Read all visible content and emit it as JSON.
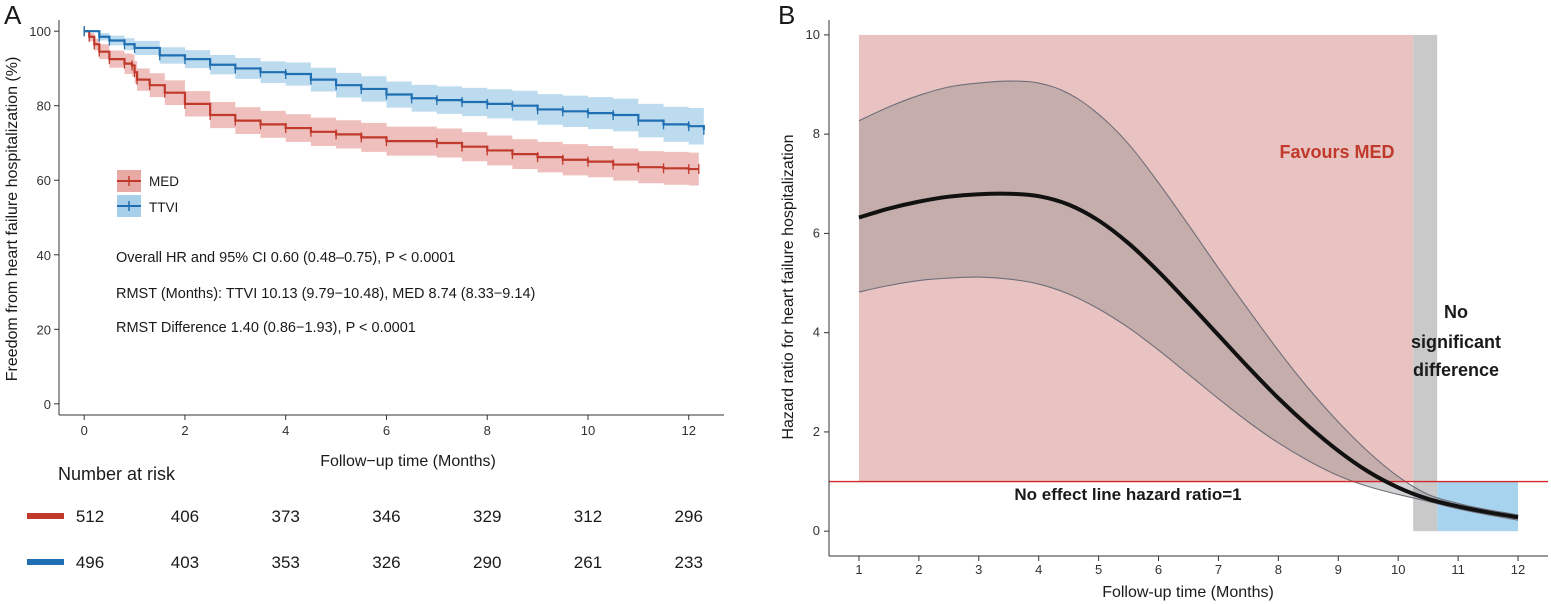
{
  "chart_data": [
    {
      "panel": "A",
      "type": "line",
      "subtype": "kaplan-meier",
      "xlabel": "Follow−up time (Months)",
      "ylabel": "Freedom from heart failure hospitalization (%)",
      "xlim": [
        -0.5,
        12.7
      ],
      "ylim": [
        -3,
        103
      ],
      "xticks": [
        0,
        2,
        4,
        6,
        8,
        10,
        12
      ],
      "yticks": [
        0,
        20,
        40,
        60,
        80,
        100
      ],
      "legend_position": "left-middle",
      "series": [
        {
          "name": "MED",
          "color": "#c0392b",
          "band_color": "#e8a9a5",
          "x": [
            0,
            0.1,
            0.2,
            0.3,
            0.5,
            0.8,
            0.95,
            1.0,
            1.05,
            1.3,
            1.6,
            2.0,
            2.5,
            3.0,
            3.5,
            4.0,
            4.5,
            5.0,
            5.5,
            6.0,
            7.0,
            7.5,
            8.0,
            8.5,
            9.0,
            9.5,
            10.0,
            10.5,
            11.0,
            11.5,
            12.0,
            12.2
          ],
          "y": [
            100,
            98.5,
            96.5,
            94.5,
            92.5,
            91.3,
            90.8,
            89,
            87,
            85.5,
            83.5,
            80.5,
            77.5,
            76,
            75,
            74,
            73,
            72.3,
            71.5,
            70.5,
            70,
            69,
            68,
            67,
            66.2,
            65.5,
            65,
            64.2,
            63.5,
            63.2,
            63,
            63
          ],
          "lower": [
            100,
            97.3,
            94.8,
            92.5,
            90.2,
            88.5,
            87.8,
            86,
            84,
            82.3,
            80.2,
            77.1,
            74,
            72.4,
            71.4,
            70.3,
            69.2,
            68.5,
            67.6,
            66.6,
            66.1,
            65.1,
            64,
            63,
            62.1,
            61.3,
            60.8,
            59.9,
            59.2,
            58.8,
            58.6,
            58.5
          ],
          "upper": [
            100,
            99.5,
            98,
            96.5,
            94.8,
            94,
            93.7,
            92,
            90,
            88.7,
            86.8,
            83.9,
            81,
            79.6,
            78.6,
            77.7,
            76.8,
            76.1,
            75.4,
            74.4,
            73.9,
            72.9,
            72,
            71,
            70.3,
            69.7,
            69.2,
            68.5,
            67.8,
            67.6,
            67.4,
            67.5
          ]
        },
        {
          "name": "TTVI",
          "color": "#1f6fb2",
          "band_color": "#a7cfea",
          "x": [
            0,
            0.3,
            0.5,
            0.8,
            1.0,
            1.5,
            2.0,
            2.5,
            3.0,
            3.5,
            4.0,
            4.5,
            5.0,
            5.5,
            6.0,
            6.5,
            7.0,
            7.5,
            8.0,
            8.5,
            9.0,
            9.5,
            10.0,
            10.5,
            11.0,
            11.5,
            12.0,
            12.3
          ],
          "y": [
            100,
            98.5,
            97.5,
            96.5,
            95.5,
            93.5,
            92.5,
            91,
            90,
            89,
            88.5,
            87,
            85.5,
            84.5,
            83,
            82,
            81.5,
            81,
            80.5,
            80,
            79,
            78.5,
            78,
            77.5,
            76,
            75,
            74.5,
            73.5
          ],
          "lower": [
            100,
            97.5,
            96.2,
            94.9,
            93.6,
            91.3,
            90.1,
            88.4,
            87.2,
            86.1,
            85.4,
            83.8,
            82.2,
            81.1,
            79.5,
            78.4,
            77.8,
            77.2,
            76.6,
            76,
            74.9,
            74.3,
            73.7,
            73.1,
            71.5,
            70.3,
            69.6,
            68.5
          ],
          "upper": [
            100,
            99.5,
            98.8,
            98.1,
            97.4,
            95.7,
            94.9,
            93.6,
            92.8,
            91.9,
            91.6,
            90.2,
            88.8,
            87.9,
            86.5,
            85.6,
            85.2,
            84.8,
            84.4,
            84,
            83.1,
            82.7,
            82.3,
            81.9,
            80.5,
            79.7,
            79.4,
            78.5
          ]
        }
      ],
      "annotations": [
        "Overall HR and 95% CI 0.60 (0.48–0.75), P < 0.0001",
        "RMST (Months): TTVI 10.13 (9.79−10.48), MED 8.74 (8.33−9.14)",
        "RMST Difference 1.40 (0.86−1.93), P < 0.0001"
      ],
      "risk_table": {
        "title": "Number at risk",
        "rows": [
          {
            "group": "MED",
            "color": "#c0392b",
            "values": [
              512,
              406,
              373,
              346,
              329,
              312,
              296
            ]
          },
          {
            "group": "TTVI",
            "color": "#1f6fb2",
            "values": [
              496,
              403,
              353,
              326,
              290,
              261,
              233
            ]
          }
        ]
      }
    },
    {
      "panel": "B",
      "type": "line",
      "subtype": "time-varying hazard ratio",
      "xlabel": "Follow-up time (Months)",
      "ylabel": "Hazard ratio for heart failure hospitalization",
      "xlim": [
        0.5,
        12.5
      ],
      "ylim": [
        -0.5,
        10.3
      ],
      "xticks": [
        1,
        2,
        3,
        4,
        5,
        6,
        7,
        8,
        9,
        10,
        11,
        12
      ],
      "yticks": [
        0,
        2,
        4,
        6,
        8,
        10
      ],
      "reference_line": {
        "y": 1,
        "color": "#d62728",
        "label": "No effect line hazard ratio=1"
      },
      "regions": [
        {
          "label": "Favours MED",
          "x_range": [
            1,
            10.25
          ],
          "y_range": [
            1,
            10
          ],
          "color": "#e8c3c1",
          "label_color": "#c0392b"
        },
        {
          "label": "No significant difference",
          "x_range": [
            10.25,
            10.65
          ],
          "y_range": [
            0,
            10
          ],
          "color": "#c9c9c9"
        },
        {
          "label": "",
          "x_range": [
            10.65,
            12
          ],
          "y_range": [
            0,
            1
          ],
          "color": "#a7d3ee"
        }
      ],
      "series": [
        {
          "name": "HR",
          "color": "#111111",
          "x": [
            1,
            1.5,
            2,
            2.5,
            3,
            3.5,
            4,
            4.5,
            5,
            5.5,
            6,
            6.5,
            7,
            7.5,
            8,
            8.5,
            9,
            9.5,
            10,
            10.5,
            11,
            11.5,
            12
          ],
          "y": [
            6.32,
            6.5,
            6.64,
            6.74,
            6.79,
            6.8,
            6.75,
            6.58,
            6.26,
            5.8,
            5.23,
            4.6,
            3.95,
            3.3,
            2.68,
            2.12,
            1.62,
            1.2,
            0.88,
            0.65,
            0.5,
            0.38,
            0.28
          ],
          "lower": [
            4.82,
            4.95,
            5.05,
            5.1,
            5.12,
            5.08,
            4.98,
            4.78,
            4.48,
            4.1,
            3.65,
            3.16,
            2.67,
            2.2,
            1.78,
            1.42,
            1.12,
            0.9,
            0.74,
            0.6,
            0.45,
            0.33,
            0.22
          ],
          "upper": [
            8.27,
            8.55,
            8.78,
            8.95,
            9.03,
            9.07,
            9.03,
            8.82,
            8.4,
            7.8,
            7.02,
            6.17,
            5.3,
            4.46,
            3.64,
            2.88,
            2.2,
            1.6,
            1.1,
            0.74,
            0.56,
            0.43,
            0.33
          ]
        }
      ],
      "annotations": [
        "Favours MED",
        "No",
        "significant",
        "difference",
        "No effect line hazard ratio=1"
      ]
    }
  ],
  "panel_labels": {
    "a": "A",
    "b": "B"
  }
}
